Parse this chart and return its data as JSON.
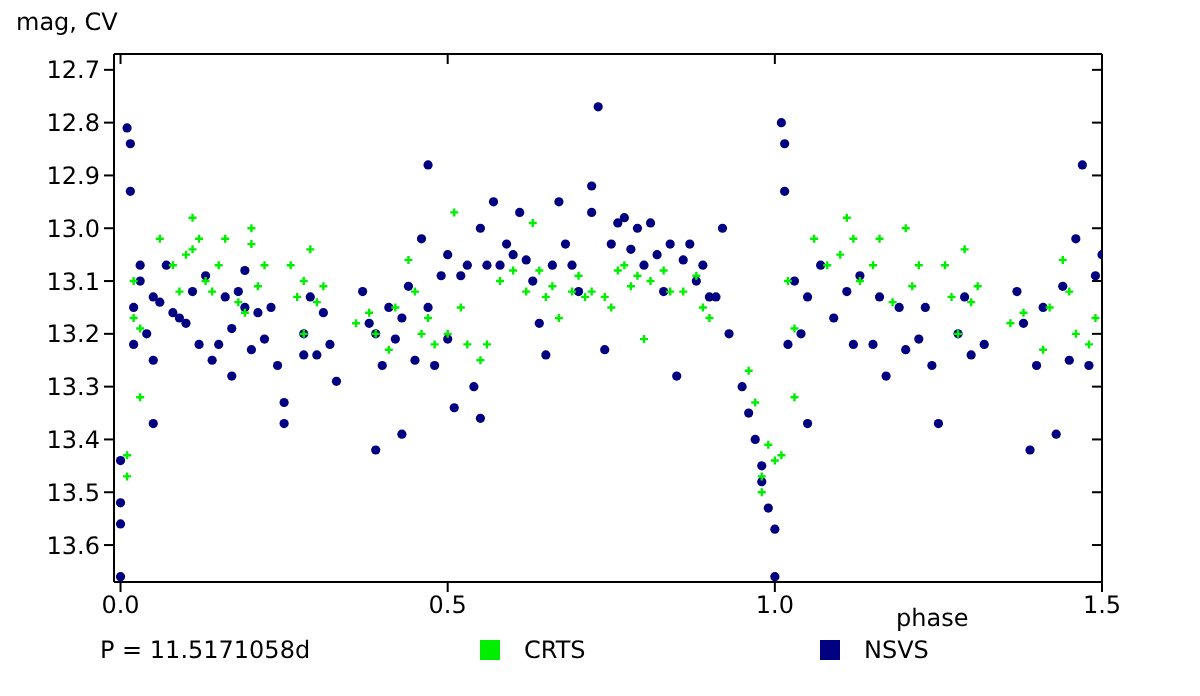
{
  "chart_data": {
    "type": "scatter",
    "xlabel": "phase",
    "ylabel": "mag, CV",
    "annotations": [
      "P = 11.5171058d"
    ],
    "xlim": [
      -0.01,
      1.5
    ],
    "xticks": [
      {
        "value": 0,
        "label": "0.0"
      },
      {
        "value": 0.5,
        "label": "0.5"
      },
      {
        "value": 1,
        "label": "1.0"
      },
      {
        "value": 1.5,
        "label": "1.5"
      }
    ],
    "ylim": [
      13.67,
      12.67
    ],
    "yticks": [
      12.7,
      12.8,
      12.9,
      {
        "value": 13,
        "label": "13.0"
      },
      13.1,
      13.2,
      13.3,
      13.4,
      13.5,
      13.6
    ],
    "legend": "bottom",
    "series": [
      {
        "name": "CRTS",
        "color": "#00ee00",
        "marker": "cross",
        "x": [
          0.01,
          0.01,
          0.02,
          0.02,
          0.03,
          0.03,
          0.06,
          0.08,
          0.09,
          0.1,
          0.11,
          0.11,
          0.12,
          0.13,
          0.14,
          0.15,
          0.16,
          0.18,
          0.19,
          0.2,
          0.2,
          0.21,
          0.22,
          0.26,
          0.27,
          0.28,
          0.28,
          0.29,
          0.3,
          0.31,
          0.36,
          0.38,
          0.39,
          0.41,
          0.42,
          0.44,
          0.45,
          0.46,
          0.47,
          0.48,
          0.5,
          0.51,
          0.52,
          0.53,
          0.55,
          0.56,
          0.58,
          0.6,
          0.62,
          0.63,
          0.64,
          0.65,
          0.66,
          0.67,
          0.69,
          0.7,
          0.71,
          0.72,
          0.74,
          0.75,
          0.76,
          0.77,
          0.78,
          0.79,
          0.8,
          0.81,
          0.83,
          0.84,
          0.86,
          0.88,
          0.89,
          0.9,
          0.96,
          0.97,
          0.98,
          0.98,
          0.99,
          1.0,
          1.01,
          1.02,
          1.03,
          1.03,
          1.06,
          1.08,
          1.1,
          1.11,
          1.12,
          1.13,
          1.15,
          1.16,
          1.18,
          1.2,
          1.21,
          1.22,
          1.26,
          1.27,
          1.28,
          1.29,
          1.3,
          1.31,
          1.36,
          1.38,
          1.41,
          1.42,
          1.44,
          1.45,
          1.46,
          1.48,
          1.49
        ],
        "values": [
          13.43,
          13.47,
          13.1,
          13.17,
          13.19,
          13.32,
          13.02,
          13.07,
          13.12,
          13.05,
          13.04,
          12.98,
          13.02,
          13.1,
          13.12,
          13.07,
          13.02,
          13.14,
          13.16,
          13.0,
          13.03,
          13.11,
          13.07,
          13.07,
          13.13,
          13.1,
          13.2,
          13.04,
          13.14,
          13.11,
          13.18,
          13.16,
          13.2,
          13.23,
          13.15,
          13.06,
          13.12,
          13.2,
          13.17,
          13.22,
          13.2,
          12.97,
          13.15,
          13.22,
          13.25,
          13.22,
          13.1,
          13.08,
          13.12,
          12.99,
          13.08,
          13.13,
          13.11,
          13.17,
          13.12,
          13.09,
          13.13,
          13.12,
          13.13,
          13.15,
          13.08,
          13.07,
          13.11,
          13.09,
          13.21,
          13.1,
          13.08,
          13.12,
          13.12,
          13.09,
          13.15,
          13.17,
          13.27,
          13.33,
          13.47,
          13.5,
          13.41,
          13.44,
          13.43,
          13.1,
          13.19,
          13.32,
          13.02,
          13.07,
          13.05,
          12.98,
          13.02,
          13.1,
          13.07,
          13.02,
          13.14,
          13.0,
          13.11,
          13.07,
          13.07,
          13.13,
          13.2,
          13.04,
          13.14,
          13.11,
          13.18,
          13.16,
          13.23,
          13.15,
          13.06,
          13.12,
          13.2,
          13.22,
          13.17
        ]
      },
      {
        "name": "NSVS",
        "color": "#000080",
        "marker": "circle",
        "x": [
          0.0,
          0.0,
          0.0,
          0.0,
          0.01,
          0.015,
          0.015,
          0.02,
          0.02,
          0.03,
          0.03,
          0.04,
          0.05,
          0.05,
          0.05,
          0.06,
          0.07,
          0.08,
          0.09,
          0.1,
          0.11,
          0.12,
          0.13,
          0.14,
          0.15,
          0.16,
          0.17,
          0.17,
          0.18,
          0.19,
          0.19,
          0.2,
          0.21,
          0.22,
          0.23,
          0.24,
          0.25,
          0.25,
          0.28,
          0.28,
          0.29,
          0.3,
          0.31,
          0.32,
          0.33,
          0.37,
          0.38,
          0.39,
          0.39,
          0.4,
          0.41,
          0.42,
          0.43,
          0.43,
          0.44,
          0.45,
          0.46,
          0.47,
          0.47,
          0.48,
          0.49,
          0.5,
          0.5,
          0.51,
          0.52,
          0.53,
          0.54,
          0.55,
          0.55,
          0.56,
          0.57,
          0.58,
          0.59,
          0.6,
          0.61,
          0.62,
          0.63,
          0.64,
          0.65,
          0.66,
          0.67,
          0.68,
          0.69,
          0.7,
          0.72,
          0.72,
          0.73,
          0.74,
          0.75,
          0.76,
          0.77,
          0.78,
          0.79,
          0.8,
          0.81,
          0.82,
          0.83,
          0.84,
          0.85,
          0.86,
          0.87,
          0.88,
          0.89,
          0.9,
          0.91,
          0.92,
          0.93,
          0.95,
          0.96,
          0.97,
          0.98,
          0.98,
          0.99,
          1.0,
          1.0,
          1.01,
          1.015,
          1.015,
          1.02,
          1.03,
          1.04,
          1.05,
          1.05,
          1.07,
          1.09,
          1.11,
          1.12,
          1.13,
          1.15,
          1.16,
          1.17,
          1.19,
          1.2,
          1.22,
          1.23,
          1.24,
          1.25,
          1.28,
          1.29,
          1.3,
          1.32,
          1.37,
          1.38,
          1.39,
          1.4,
          1.41,
          1.43,
          1.44,
          1.45,
          1.46,
          1.47,
          1.48,
          1.49,
          1.5
        ],
        "values": [
          13.44,
          13.52,
          13.56,
          13.66,
          12.81,
          12.84,
          12.93,
          13.22,
          13.15,
          13.1,
          13.07,
          13.2,
          13.25,
          13.37,
          13.13,
          13.14,
          13.07,
          13.16,
          13.17,
          13.18,
          13.12,
          13.22,
          13.09,
          13.25,
          13.22,
          13.13,
          13.28,
          13.19,
          13.12,
          13.15,
          13.08,
          13.23,
          13.16,
          13.21,
          13.15,
          13.26,
          13.33,
          13.37,
          13.2,
          13.24,
          13.13,
          13.24,
          13.16,
          13.22,
          13.29,
          13.12,
          13.18,
          13.42,
          13.2,
          13.26,
          13.15,
          13.21,
          13.17,
          13.39,
          13.11,
          13.25,
          13.02,
          13.15,
          12.88,
          13.26,
          13.09,
          13.21,
          13.05,
          13.34,
          13.09,
          13.07,
          13.3,
          13.36,
          13.0,
          13.07,
          12.95,
          13.07,
          13.03,
          13.05,
          12.97,
          13.06,
          13.1,
          13.18,
          13.24,
          13.07,
          12.95,
          13.03,
          13.07,
          13.12,
          12.97,
          12.92,
          12.77,
          13.23,
          13.03,
          12.99,
          12.98,
          13.04,
          13.0,
          13.07,
          12.99,
          13.05,
          13.12,
          13.03,
          13.28,
          13.06,
          13.03,
          13.1,
          13.07,
          13.13,
          13.13,
          13.0,
          13.2,
          13.3,
          13.35,
          13.4,
          13.45,
          13.48,
          13.53,
          13.57,
          13.66,
          12.8,
          12.84,
          12.93,
          13.22,
          13.1,
          13.2,
          13.37,
          13.13,
          13.07,
          13.17,
          13.12,
          13.22,
          13.09,
          13.22,
          13.13,
          13.28,
          13.15,
          13.23,
          13.21,
          13.15,
          13.26,
          13.37,
          13.2,
          13.13,
          13.24,
          13.22,
          13.12,
          13.18,
          13.42,
          13.26,
          13.15,
          13.39,
          13.11,
          13.25,
          13.02,
          12.88,
          13.26,
          13.09,
          13.05
        ]
      }
    ]
  }
}
